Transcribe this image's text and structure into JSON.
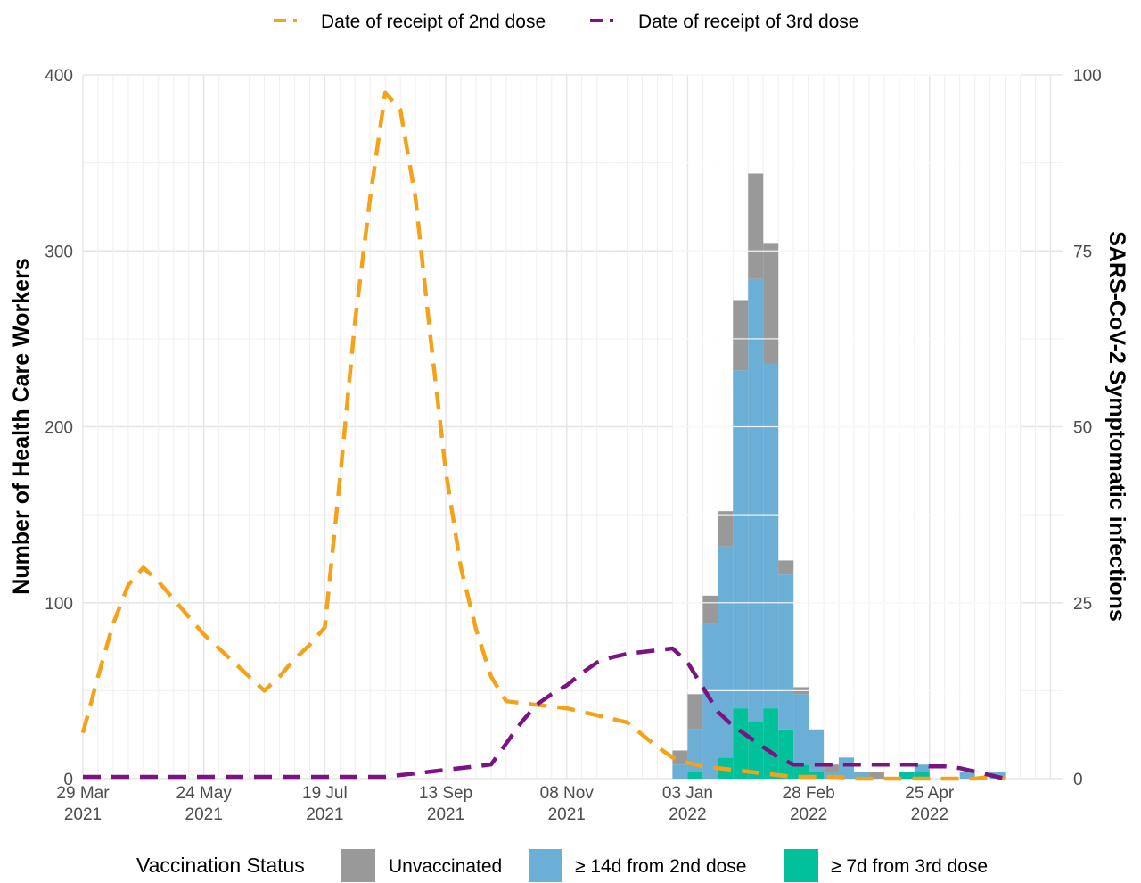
{
  "chart_data": {
    "type": "bar+line",
    "legend_top": [
      {
        "name": "Date of receipt of 2nd dose",
        "color": "#f5a21b",
        "style": "dashed"
      },
      {
        "name": "Date of receipt of 3rd dose",
        "color": "#7b1382",
        "style": "dashed"
      }
    ],
    "legend_bottom": {
      "title": "Vaccination Status",
      "items": [
        {
          "name": "Unvaccinated",
          "color": "#999999"
        },
        {
          "name": "≥ 14d from 2nd dose",
          "color": "#6baed6"
        },
        {
          "name": "≥ 7d from 3rd dose",
          "color": "#00c19a"
        }
      ]
    },
    "ylabel_left": "Number of Health Care Workers",
    "ylabel_right": "SARS-CoV-2 Symptomatic infections",
    "ylim_left": [
      0,
      400
    ],
    "ylim_right": [
      0,
      100
    ],
    "yticks_left": [
      "0",
      "100",
      "200",
      "300",
      "400"
    ],
    "yticks_right": [
      "0",
      "25",
      "50",
      "75",
      "100"
    ],
    "x_start_date": "2021-03-29",
    "x_end_date": "2022-06-26",
    "x_ticks": [
      {
        "date": "2021-03-29",
        "line1": "29 Mar",
        "line2": "2021"
      },
      {
        "date": "2021-05-24",
        "line1": "24 May",
        "line2": "2021"
      },
      {
        "date": "2021-07-19",
        "line1": "19 Jul",
        "line2": "2021"
      },
      {
        "date": "2021-09-13",
        "line1": "13 Sep",
        "line2": "2021"
      },
      {
        "date": "2021-11-08",
        "line1": "08 Nov",
        "line2": "2021"
      },
      {
        "date": "2022-01-03",
        "line1": "03 Jan",
        "line2": "2022"
      },
      {
        "date": "2022-02-28",
        "line1": "28 Feb",
        "line2": "2022"
      },
      {
        "date": "2022-04-25",
        "line1": "25 Apr",
        "line2": "2022"
      }
    ],
    "bars_axis": "right",
    "bars": [
      {
        "week": "2021-12-27",
        "unvaccinated": 2,
        "from_2nd_dose": 2,
        "from_3rd_dose": 0
      },
      {
        "week": "2022-01-03",
        "unvaccinated": 5,
        "from_2nd_dose": 6,
        "from_3rd_dose": 1
      },
      {
        "week": "2022-01-10",
        "unvaccinated": 4,
        "from_2nd_dose": 22,
        "from_3rd_dose": 0
      },
      {
        "week": "2022-01-17",
        "unvaccinated": 5,
        "from_2nd_dose": 30,
        "from_3rd_dose": 3
      },
      {
        "week": "2022-01-24",
        "unvaccinated": 10,
        "from_2nd_dose": 48,
        "from_3rd_dose": 10
      },
      {
        "week": "2022-01-31",
        "unvaccinated": 15,
        "from_2nd_dose": 63,
        "from_3rd_dose": 8
      },
      {
        "week": "2022-02-07",
        "unvaccinated": 17,
        "from_2nd_dose": 49,
        "from_3rd_dose": 10
      },
      {
        "week": "2022-02-14",
        "unvaccinated": 2,
        "from_2nd_dose": 22,
        "from_3rd_dose": 7
      },
      {
        "week": "2022-02-21",
        "unvaccinated": 1,
        "from_2nd_dose": 10,
        "from_3rd_dose": 2
      },
      {
        "week": "2022-02-28",
        "unvaccinated": 0,
        "from_2nd_dose": 6,
        "from_3rd_dose": 1
      },
      {
        "week": "2022-03-07",
        "unvaccinated": 1,
        "from_2nd_dose": 1,
        "from_3rd_dose": 0
      },
      {
        "week": "2022-03-14",
        "unvaccinated": 0,
        "from_2nd_dose": 3,
        "from_3rd_dose": 0
      },
      {
        "week": "2022-03-21",
        "unvaccinated": 0,
        "from_2nd_dose": 1,
        "from_3rd_dose": 0
      },
      {
        "week": "2022-03-28",
        "unvaccinated": 1,
        "from_2nd_dose": 0,
        "from_3rd_dose": 0
      },
      {
        "week": "2022-04-04",
        "unvaccinated": 0,
        "from_2nd_dose": 0,
        "from_3rd_dose": 0
      },
      {
        "week": "2022-04-11",
        "unvaccinated": 0,
        "from_2nd_dose": 0,
        "from_3rd_dose": 1
      },
      {
        "week": "2022-04-18",
        "unvaccinated": 0,
        "from_2nd_dose": 1,
        "from_3rd_dose": 1
      },
      {
        "week": "2022-04-25",
        "unvaccinated": 0,
        "from_2nd_dose": 0,
        "from_3rd_dose": 0
      },
      {
        "week": "2022-05-02",
        "unvaccinated": 0,
        "from_2nd_dose": 0,
        "from_3rd_dose": 0
      },
      {
        "week": "2022-05-09",
        "unvaccinated": 0,
        "from_2nd_dose": 1,
        "from_3rd_dose": 0
      },
      {
        "week": "2022-05-16",
        "unvaccinated": 0,
        "from_2nd_dose": 0,
        "from_3rd_dose": 0
      },
      {
        "week": "2022-05-23",
        "unvaccinated": 0,
        "from_2nd_dose": 1,
        "from_3rd_dose": 0
      }
    ],
    "lines_axis": "left",
    "line_2nd_dose": [
      [
        "2021-03-29",
        26
      ],
      [
        "2021-04-05",
        58
      ],
      [
        "2021-04-12",
        88
      ],
      [
        "2021-04-19",
        110
      ],
      [
        "2021-04-26",
        120
      ],
      [
        "2021-05-03",
        112
      ],
      [
        "2021-05-10",
        102
      ],
      [
        "2021-05-17",
        92
      ],
      [
        "2021-05-24",
        82
      ],
      [
        "2021-05-31",
        74
      ],
      [
        "2021-06-07",
        66
      ],
      [
        "2021-06-14",
        58
      ],
      [
        "2021-06-21",
        50
      ],
      [
        "2021-06-28",
        58
      ],
      [
        "2021-07-05",
        68
      ],
      [
        "2021-07-12",
        76
      ],
      [
        "2021-07-19",
        86
      ],
      [
        "2021-07-26",
        170
      ],
      [
        "2021-08-02",
        260
      ],
      [
        "2021-08-09",
        330
      ],
      [
        "2021-08-16",
        390
      ],
      [
        "2021-08-23",
        380
      ],
      [
        "2021-08-30",
        330
      ],
      [
        "2021-09-06",
        250
      ],
      [
        "2021-09-13",
        175
      ],
      [
        "2021-09-20",
        120
      ],
      [
        "2021-09-27",
        85
      ],
      [
        "2021-10-04",
        58
      ],
      [
        "2021-10-11",
        44
      ],
      [
        "2021-10-18",
        43
      ],
      [
        "2021-10-25",
        42
      ],
      [
        "2021-11-01",
        41
      ],
      [
        "2021-11-08",
        40
      ],
      [
        "2021-11-15",
        38
      ],
      [
        "2021-11-22",
        36
      ],
      [
        "2021-11-29",
        34
      ],
      [
        "2021-12-06",
        32
      ],
      [
        "2021-12-13",
        25
      ],
      [
        "2021-12-20",
        18
      ],
      [
        "2021-12-27",
        12
      ],
      [
        "2022-01-03",
        9
      ],
      [
        "2022-01-10",
        7
      ],
      [
        "2022-01-17",
        6
      ],
      [
        "2022-01-24",
        5
      ],
      [
        "2022-01-31",
        4
      ],
      [
        "2022-02-07",
        3
      ],
      [
        "2022-02-14",
        2
      ],
      [
        "2022-02-21",
        1
      ],
      [
        "2022-02-28",
        1
      ],
      [
        "2022-03-07",
        1
      ],
      [
        "2022-03-14",
        1
      ],
      [
        "2022-03-21",
        0
      ],
      [
        "2022-03-28",
        0
      ],
      [
        "2022-04-04",
        0
      ],
      [
        "2022-04-11",
        0
      ],
      [
        "2022-04-18",
        0
      ],
      [
        "2022-04-25",
        0
      ],
      [
        "2022-05-02",
        0
      ],
      [
        "2022-05-09",
        0
      ],
      [
        "2022-05-16",
        0
      ],
      [
        "2022-05-23",
        1
      ],
      [
        "2022-05-30",
        0
      ]
    ],
    "line_3rd_dose": [
      [
        "2021-03-29",
        1
      ],
      [
        "2021-05-24",
        1
      ],
      [
        "2021-07-19",
        1
      ],
      [
        "2021-08-16",
        1
      ],
      [
        "2021-08-30",
        3
      ],
      [
        "2021-09-13",
        5
      ],
      [
        "2021-09-27",
        7
      ],
      [
        "2021-10-04",
        8
      ],
      [
        "2021-10-11",
        20
      ],
      [
        "2021-10-18",
        32
      ],
      [
        "2021-10-25",
        42
      ],
      [
        "2021-11-01",
        48
      ],
      [
        "2021-11-08",
        53
      ],
      [
        "2021-11-15",
        60
      ],
      [
        "2021-11-22",
        66
      ],
      [
        "2021-11-29",
        69
      ],
      [
        "2021-12-06",
        71
      ],
      [
        "2021-12-13",
        72
      ],
      [
        "2021-12-20",
        73
      ],
      [
        "2021-12-27",
        74
      ],
      [
        "2022-01-03",
        66
      ],
      [
        "2022-01-10",
        52
      ],
      [
        "2022-01-17",
        38
      ],
      [
        "2022-01-24",
        30
      ],
      [
        "2022-01-31",
        24
      ],
      [
        "2022-02-07",
        18
      ],
      [
        "2022-02-14",
        12
      ],
      [
        "2022-02-21",
        8
      ],
      [
        "2022-02-28",
        8
      ],
      [
        "2022-03-07",
        8
      ],
      [
        "2022-03-14",
        8
      ],
      [
        "2022-03-21",
        8
      ],
      [
        "2022-03-28",
        8
      ],
      [
        "2022-04-04",
        8
      ],
      [
        "2022-04-11",
        8
      ],
      [
        "2022-04-18",
        8
      ],
      [
        "2022-04-25",
        7
      ],
      [
        "2022-05-02",
        7
      ],
      [
        "2022-05-09",
        6
      ],
      [
        "2022-05-16",
        4
      ],
      [
        "2022-05-23",
        2
      ],
      [
        "2022-05-30",
        0
      ]
    ],
    "grid": true
  }
}
